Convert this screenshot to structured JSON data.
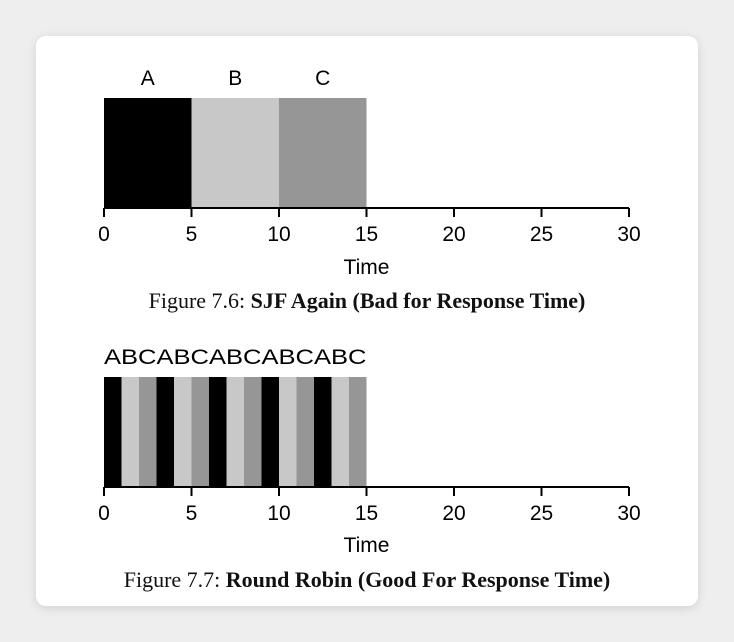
{
  "chart_data": [
    {
      "type": "gantt",
      "x_label": "Time",
      "x_ticks": [
        0,
        5,
        10,
        15,
        20,
        25,
        30
      ],
      "x_range": [
        0,
        30
      ],
      "jobs": [
        {
          "name": "A",
          "start": 0,
          "end": 5,
          "color": "#000000"
        },
        {
          "name": "B",
          "start": 5,
          "end": 10,
          "color": "#c8c8c8"
        },
        {
          "name": "C",
          "start": 10,
          "end": 15,
          "color": "#969696"
        }
      ],
      "caption_prefix": "Figure 7.6:",
      "caption_title": "SJF Again (Bad for Response Time)"
    },
    {
      "type": "gantt",
      "x_label": "Time",
      "x_ticks": [
        0,
        5,
        10,
        15,
        20,
        25,
        30
      ],
      "x_range": [
        0,
        30
      ],
      "top_label": "ABCABCABCABCABC",
      "slice_pattern": [
        "A",
        "B",
        "C"
      ],
      "slice_length": 1,
      "slice_range": [
        0,
        15
      ],
      "colors": {
        "A": "#000000",
        "B": "#c8c8c8",
        "C": "#969696"
      },
      "caption_prefix": "Figure 7.7:",
      "caption_title": "Round Robin (Good For Response Time)"
    }
  ]
}
